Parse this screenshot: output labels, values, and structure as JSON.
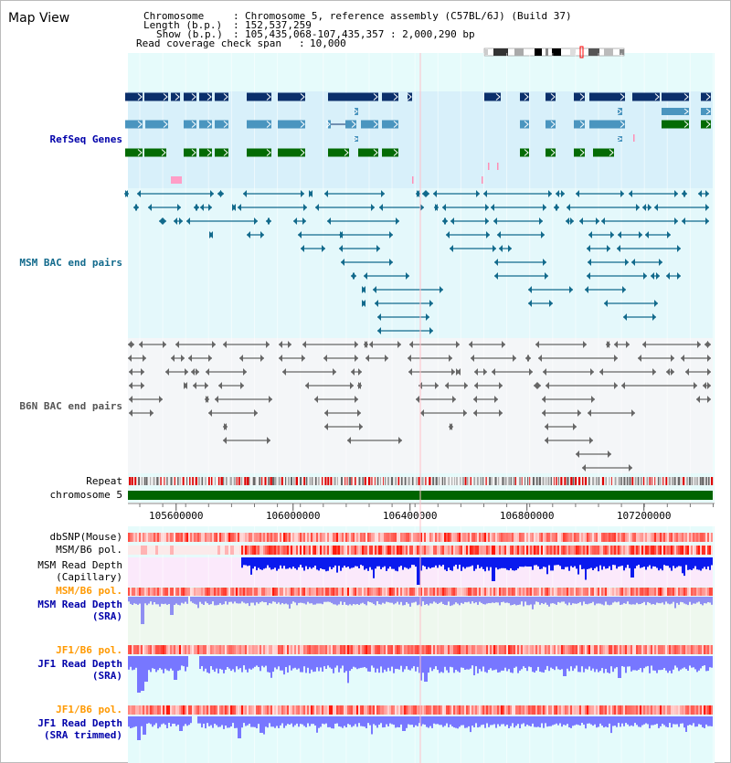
{
  "title": "Map View",
  "info": {
    "chromosome_label": "Chromosome",
    "chromosome_value": "Chromosome 5, reference assembly (C57BL/6J) (Build 37)",
    "length_label": "Length (b.p.)",
    "length_value": "152,537,259",
    "show_label": "Show (b.p.)",
    "show_value": "105,435,068-107,435,357 : 2,000,290 bp",
    "coverage_label": "Read coverage check span",
    "coverage_value": "10,000"
  },
  "tracks": {
    "refseq": "RefSeq Genes",
    "msm_bac": "MSM BAC end pairs",
    "b6n_bac": "B6N BAC end pairs",
    "repeat": "Repeat",
    "chromosome": "chromosome 5",
    "dbsnp": "dbSNP(Mouse)",
    "msm_pol": "MSM/B6 pol.",
    "msm_depth_cap_1": "MSM Read Depth",
    "msm_depth_cap_2": "(Capillary)",
    "msm_pol_2": "MSM/B6 pol.",
    "msm_depth_sra_1": "MSM Read Depth",
    "msm_depth_sra_2": "(SRA)",
    "jf1_pol": "JF1/B6 pol.",
    "jf1_depth_1": "JF1 Read Depth",
    "jf1_depth_2": "(SRA)",
    "jf1_pol_2": "JF1/B6 pol.",
    "jf1_trim_1": "JF1 Read Depth",
    "jf1_trim_2": "(SRA trimmed)"
  },
  "ruler": {
    "ticks": [
      "105600000",
      "106000000",
      "106400000",
      "106800000",
      "107200000"
    ],
    "tick_positions_bp": [
      105600000,
      106000000,
      106400000,
      106800000,
      107200000
    ],
    "start_bp": 105435068,
    "end_bp": 107435357
  },
  "colors": {
    "refseq_dark": "#0b2f6b",
    "refseq_mid": "#4a95bf",
    "refseq_green": "#046b04",
    "msm_bac": "#126a8c",
    "b6n_bac": "#666666",
    "chromosome": "#006400",
    "label_blue": "#0000aa",
    "label_teal": "#126a8c",
    "label_orange": "#ff9900",
    "cursor": "#ffc0c8"
  }
}
